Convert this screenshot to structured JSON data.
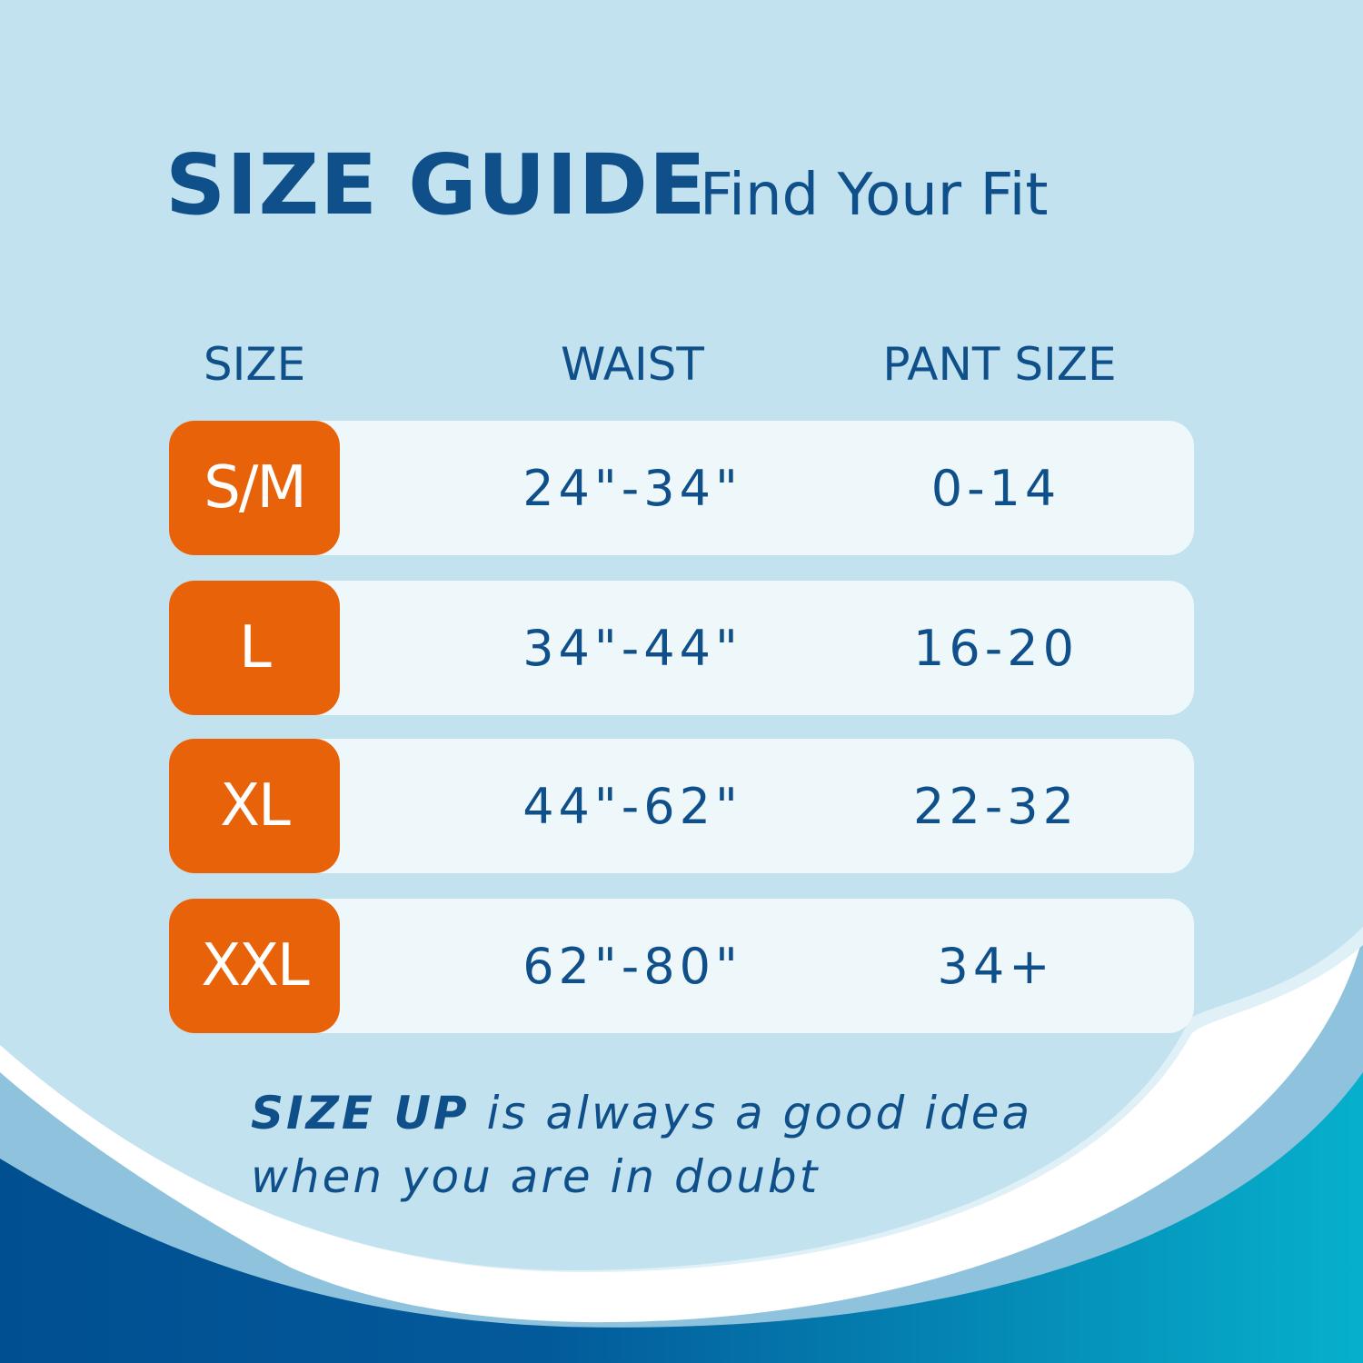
{
  "header": {
    "title": "SIZE GUIDE",
    "subtitle": "Find Your Fit"
  },
  "columns": [
    "SIZE",
    "WAIST",
    "PANT SIZE"
  ],
  "rows": [
    {
      "size": "S/M",
      "waist": "24\"-34\"",
      "pant": "0-14"
    },
    {
      "size": "L",
      "waist": "34\"-44\"",
      "pant": "16-20"
    },
    {
      "size": "XL",
      "waist": "44\"-62\"",
      "pant": "22-32"
    },
    {
      "size": "XXL",
      "waist": "62\"-80\"",
      "pant": "34+"
    }
  ],
  "footer": {
    "emphasis": "SIZE UP",
    "line1_rest": " is always a good idea",
    "line2": "when you are in doubt"
  },
  "colors": {
    "background": "#c2e2ef",
    "text": "#0f4f8a",
    "badge": "#e8620a",
    "row": "#eef7fa",
    "wave_dark": "#004f91",
    "wave_teal": "#06b0cc"
  }
}
